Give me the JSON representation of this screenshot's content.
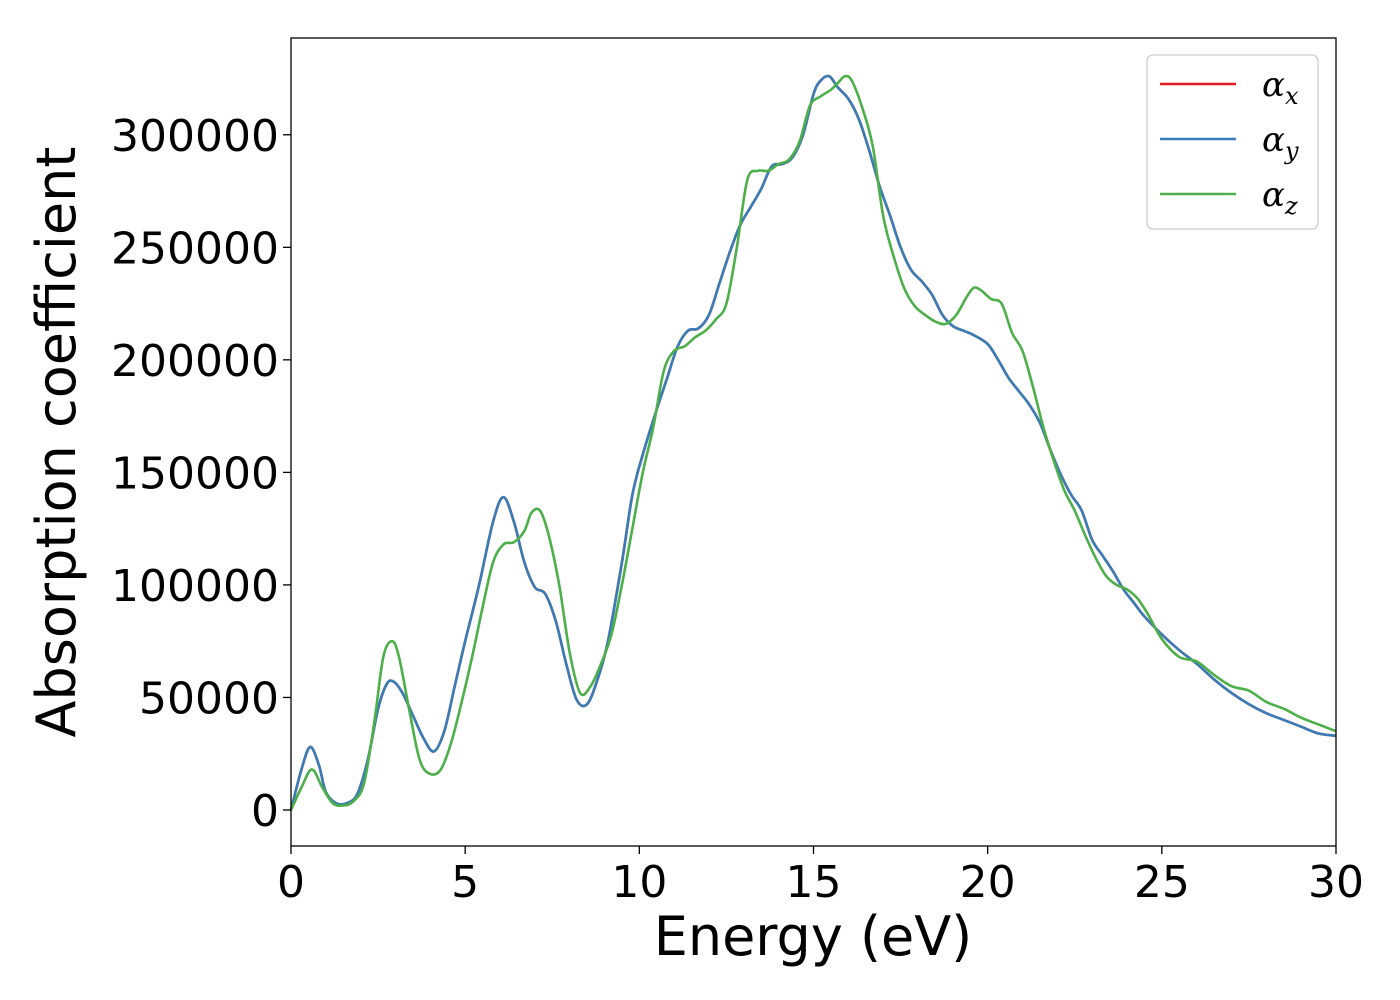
{
  "chart_data": {
    "type": "line",
    "title": "",
    "xlabel": "Energy (eV)",
    "ylabel": "Absorption coefficient",
    "xlim": [
      0,
      30
    ],
    "ylim": [
      -16000,
      343000
    ],
    "xticks": [
      0,
      5,
      10,
      15,
      20,
      25,
      30
    ],
    "xtick_labels": [
      "0",
      "5",
      "10",
      "15",
      "20",
      "25",
      "30"
    ],
    "yticks": [
      0,
      50000,
      100000,
      150000,
      200000,
      250000,
      300000
    ],
    "ytick_labels": [
      "0",
      "50000",
      "100000",
      "150000",
      "200000",
      "250000",
      "300000"
    ],
    "grid": false,
    "legend_position": "top-right",
    "series": [
      {
        "name": "α",
        "name_subscript": "x",
        "color": "#e41a1c",
        "x": [
          0,
          0.3,
          0.55,
          0.8,
          1.0,
          1.3,
          1.6,
          1.9,
          2.2,
          2.5,
          2.75,
          2.95,
          3.2,
          3.5,
          3.8,
          4.1,
          4.4,
          4.7,
          5.0,
          5.4,
          5.8,
          6.1,
          6.4,
          6.7,
          7.0,
          7.3,
          7.6,
          7.9,
          8.2,
          8.5,
          8.8,
          9.1,
          9.5,
          9.8,
          10.1,
          10.5,
          10.8,
          11.1,
          11.4,
          11.7,
          12.0,
          12.3,
          12.6,
          12.9,
          13.2,
          13.5,
          13.8,
          14.1,
          14.4,
          14.7,
          15.0,
          15.2,
          15.45,
          15.7,
          16.0,
          16.3,
          16.6,
          16.9,
          17.2,
          17.5,
          17.8,
          18.1,
          18.4,
          18.7,
          19.0,
          19.3,
          19.6,
          20.0,
          20.3,
          20.6,
          20.9,
          21.2,
          21.5,
          21.8,
          22.1,
          22.4,
          22.7,
          23.0,
          23.3,
          23.6,
          23.9,
          24.2,
          24.5,
          25.0,
          25.5,
          26.0,
          26.5,
          27.0,
          27.5,
          28.0,
          28.5,
          29.0,
          29.5,
          30.0
        ],
        "y": [
          0,
          18000,
          28000,
          20000,
          8000,
          3000,
          3000,
          7000,
          22000,
          45000,
          56000,
          57000,
          52000,
          42000,
          32000,
          26000,
          35000,
          55000,
          75000,
          100000,
          128000,
          139000,
          128000,
          110000,
          99000,
          96000,
          84000,
          65000,
          49000,
          47000,
          58000,
          75000,
          110000,
          140000,
          158000,
          178000,
          192000,
          206000,
          213000,
          214000,
          220000,
          234000,
          248000,
          260000,
          268000,
          276000,
          286000,
          287000,
          290000,
          300000,
          318000,
          324000,
          326000,
          321000,
          316000,
          307000,
          293000,
          277000,
          264000,
          250000,
          240000,
          235000,
          229000,
          220000,
          215000,
          213000,
          211000,
          207000,
          200000,
          192000,
          186000,
          180000,
          172000,
          160000,
          149000,
          140000,
          133000,
          120000,
          113000,
          106000,
          98000,
          92000,
          86000,
          78000,
          71000,
          65000,
          58000,
          52000,
          47000,
          43000,
          40000,
          37000,
          34000,
          33000
        ]
      },
      {
        "name": "α",
        "name_subscript": "y",
        "color": "#377eb8",
        "x": [
          0,
          0.3,
          0.55,
          0.8,
          1.0,
          1.3,
          1.6,
          1.9,
          2.2,
          2.5,
          2.75,
          2.95,
          3.2,
          3.5,
          3.8,
          4.1,
          4.4,
          4.7,
          5.0,
          5.4,
          5.8,
          6.1,
          6.4,
          6.7,
          7.0,
          7.3,
          7.6,
          7.9,
          8.2,
          8.5,
          8.8,
          9.1,
          9.5,
          9.8,
          10.1,
          10.5,
          10.8,
          11.1,
          11.4,
          11.7,
          12.0,
          12.3,
          12.6,
          12.9,
          13.2,
          13.5,
          13.8,
          14.1,
          14.4,
          14.7,
          15.0,
          15.2,
          15.45,
          15.7,
          16.0,
          16.3,
          16.6,
          16.9,
          17.2,
          17.5,
          17.8,
          18.1,
          18.4,
          18.7,
          19.0,
          19.3,
          19.6,
          20.0,
          20.3,
          20.6,
          20.9,
          21.2,
          21.5,
          21.8,
          22.1,
          22.4,
          22.7,
          23.0,
          23.3,
          23.6,
          23.9,
          24.2,
          24.5,
          25.0,
          25.5,
          26.0,
          26.5,
          27.0,
          27.5,
          28.0,
          28.5,
          29.0,
          29.5,
          30.0
        ],
        "y": [
          0,
          18000,
          28000,
          20000,
          8000,
          3000,
          3000,
          7000,
          22000,
          45000,
          56000,
          57000,
          52000,
          42000,
          32000,
          26000,
          35000,
          55000,
          75000,
          100000,
          128000,
          139000,
          128000,
          110000,
          99000,
          96000,
          84000,
          65000,
          49000,
          47000,
          58000,
          75000,
          110000,
          140000,
          158000,
          178000,
          192000,
          206000,
          213000,
          214000,
          220000,
          234000,
          248000,
          260000,
          268000,
          276000,
          286000,
          287000,
          290000,
          300000,
          318000,
          324000,
          326000,
          321000,
          316000,
          307000,
          293000,
          277000,
          264000,
          250000,
          240000,
          235000,
          229000,
          220000,
          215000,
          213000,
          211000,
          207000,
          200000,
          192000,
          186000,
          180000,
          172000,
          160000,
          149000,
          140000,
          133000,
          120000,
          113000,
          106000,
          98000,
          92000,
          86000,
          78000,
          71000,
          65000,
          58000,
          52000,
          47000,
          43000,
          40000,
          37000,
          34000,
          33000
        ]
      },
      {
        "name": "α",
        "name_subscript": "z",
        "color": "#4daf4a",
        "x": [
          0,
          0.3,
          0.6,
          0.9,
          1.2,
          1.5,
          1.8,
          2.1,
          2.4,
          2.65,
          2.9,
          3.1,
          3.4,
          3.7,
          4.0,
          4.3,
          4.6,
          4.9,
          5.2,
          5.5,
          5.8,
          6.1,
          6.4,
          6.7,
          6.9,
          7.15,
          7.4,
          7.7,
          8.0,
          8.3,
          8.6,
          8.9,
          9.2,
          9.5,
          9.8,
          10.1,
          10.4,
          10.7,
          11.0,
          11.3,
          11.6,
          11.9,
          12.2,
          12.5,
          12.8,
          13.1,
          13.4,
          13.7,
          14.0,
          14.3,
          14.6,
          14.9,
          15.2,
          15.5,
          15.7,
          15.9,
          16.1,
          16.4,
          16.7,
          17.0,
          17.3,
          17.6,
          17.9,
          18.2,
          18.5,
          18.8,
          19.1,
          19.4,
          19.6,
          19.8,
          20.1,
          20.4,
          20.7,
          21.0,
          21.3,
          21.6,
          21.9,
          22.2,
          22.5,
          22.8,
          23.1,
          23.4,
          23.7,
          24.0,
          24.3,
          24.6,
          25.0,
          25.5,
          26.0,
          26.5,
          27.0,
          27.5,
          28.0,
          28.5,
          29.0,
          29.5,
          30.0
        ],
        "y": [
          0,
          10000,
          18000,
          10000,
          3000,
          2000,
          4000,
          12000,
          40000,
          68000,
          75000,
          68000,
          44000,
          22000,
          16000,
          18000,
          30000,
          48000,
          68000,
          90000,
          110000,
          118000,
          119000,
          124000,
          132000,
          133000,
          122000,
          100000,
          70000,
          52000,
          55000,
          65000,
          78000,
          100000,
          125000,
          150000,
          170000,
          195000,
          204000,
          206000,
          210000,
          213000,
          218000,
          225000,
          250000,
          280000,
          284000,
          284000,
          287000,
          289000,
          297000,
          313000,
          317000,
          320000,
          323000,
          326000,
          324000,
          312000,
          295000,
          264000,
          246000,
          232000,
          224000,
          220000,
          217000,
          216000,
          220000,
          228000,
          232000,
          231000,
          227000,
          225000,
          212000,
          204000,
          188000,
          170000,
          155000,
          142000,
          133000,
          122000,
          112000,
          104000,
          100000,
          98000,
          94000,
          87000,
          76000,
          68000,
          66000,
          60000,
          55000,
          53000,
          48000,
          45000,
          41000,
          38000,
          35000
        ]
      }
    ]
  }
}
